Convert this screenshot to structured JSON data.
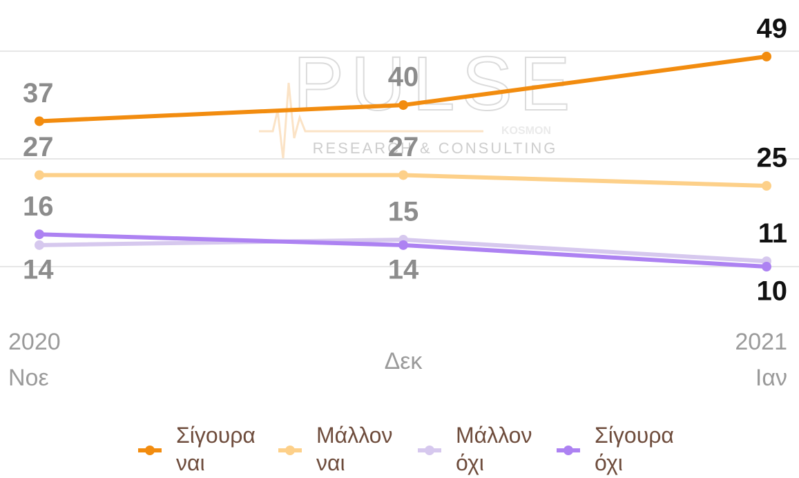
{
  "chart_data": {
    "type": "line",
    "watermark": {
      "brand": "PULSE",
      "tagline": "RESEARCH & CONSULTING",
      "partner": "KOSMON"
    },
    "categories": [
      [
        "2020",
        "Νοε"
      ],
      [
        "Δεκ"
      ],
      [
        "2021",
        "Ιαν"
      ]
    ],
    "series": [
      {
        "name": "Σίγουρα ναι",
        "color": "#f28c0f",
        "values": [
          37,
          40,
          49
        ]
      },
      {
        "name": "Μάλλον ναι",
        "color": "#fdd089",
        "values": [
          27,
          27,
          25
        ]
      },
      {
        "name": "Μάλλον όχι",
        "color": "#d6c8ee",
        "values": [
          14,
          15,
          11
        ]
      },
      {
        "name": "Σίγουρα όχι",
        "color": "#ad82f2",
        "values": [
          16,
          14,
          10
        ]
      }
    ],
    "ylim": [
      0,
      59.5
    ],
    "yticks": [
      10,
      30,
      50
    ],
    "grid": true
  }
}
